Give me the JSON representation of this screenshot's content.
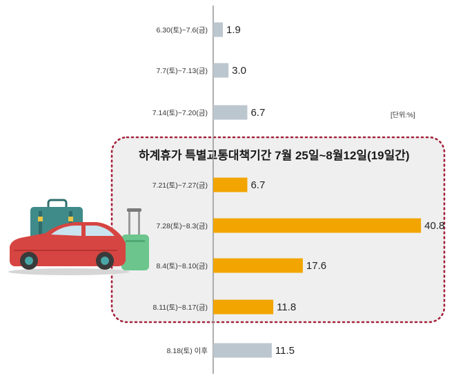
{
  "chart_data": {
    "type": "bar",
    "orientation": "horizontal",
    "categories": [
      "6.30(토)~7.6(금)",
      "7.7(토)~7.13(금)",
      "7.14(토)~7.20(금)",
      "7.21(토)~7.27(금)",
      "7.28(토)~8.3(금)",
      "8.4(토)~8.10(금)",
      "8.11(토)~8.17(금)",
      "8.18(토) 이후"
    ],
    "values": [
      1.9,
      3.0,
      6.7,
      6.7,
      40.8,
      17.6,
      11.8,
      11.5
    ],
    "value_labels": [
      "1.9",
      "3.0",
      "6.7",
      "6.7",
      "40.8",
      "17.6",
      "11.8",
      "11.5"
    ],
    "highlighted": [
      false,
      false,
      false,
      true,
      true,
      true,
      true,
      false
    ],
    "unit_label": "[단위:%]",
    "highlight_title": "하계휴가 특별교통대책기간 7월 25일~8월12일(19일간)",
    "xlim": [
      0,
      42
    ],
    "colors": {
      "normal": "#bcc6cf",
      "highlight": "#f2a500",
      "box_border": "#a3213a",
      "axis": "#9a9a9a"
    }
  }
}
